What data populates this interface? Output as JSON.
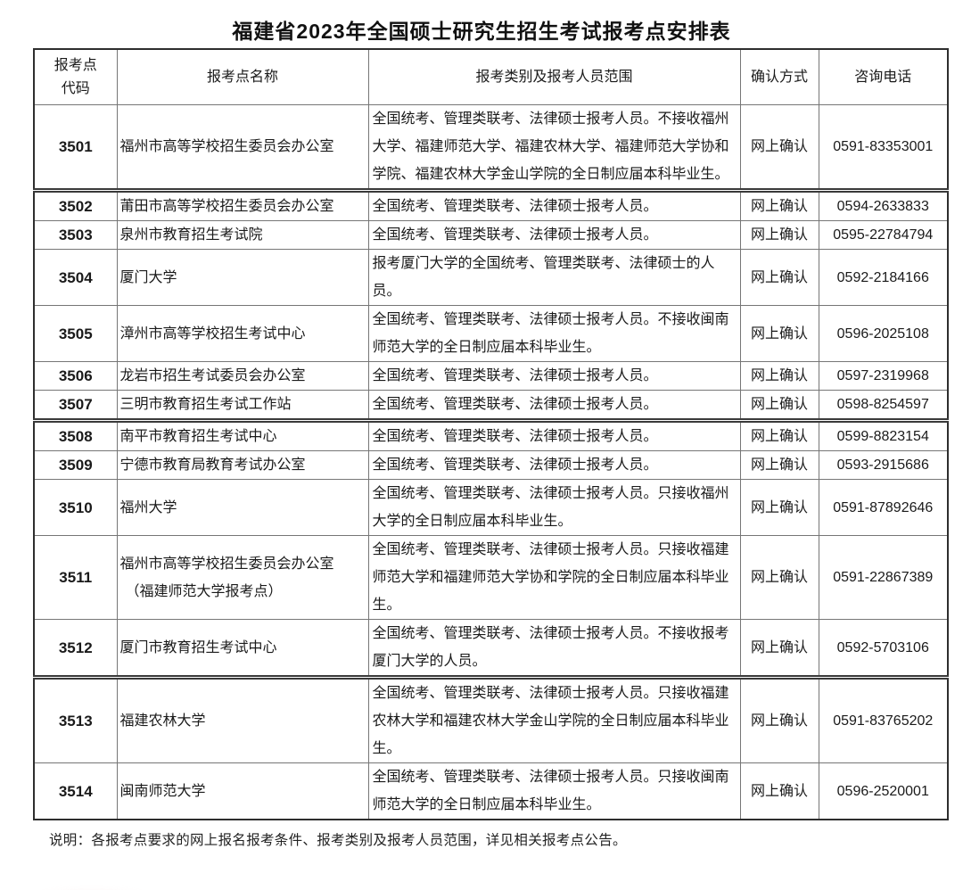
{
  "title": "福建省2023年全国硕士研究生招生考试报考点安排表",
  "table": {
    "headers": {
      "code_line1": "报考点",
      "code_line2": "代码",
      "name": "报考点名称",
      "category": "报考类别及报考人员范围",
      "confirm": "确认方式",
      "phone": "咨询电话"
    },
    "rows": [
      {
        "code": "3501",
        "name": "福州市高等学校招生委员会办公室",
        "category": "全国统考、管理类联考、法律硕士报考人员。不接收福州大学、福建师范大学、福建农林大学、福建师范大学协和学院、福建农林大学金山学院的全日制应届本科毕业生。",
        "confirm": "网上确认",
        "phone": "0591-83353001",
        "section_break": true
      },
      {
        "code": "3502",
        "name": "莆田市高等学校招生委员会办公室",
        "category": "全国统考、管理类联考、法律硕士报考人员。",
        "confirm": "网上确认",
        "phone": "0594-2633833"
      },
      {
        "code": "3503",
        "name": "泉州市教育招生考试院",
        "category": "全国统考、管理类联考、法律硕士报考人员。",
        "confirm": "网上确认",
        "phone": "0595-22784794"
      },
      {
        "code": "3504",
        "name": "厦门大学",
        "category": "报考厦门大学的全国统考、管理类联考、法律硕士的人员。",
        "confirm": "网上确认",
        "phone": "0592-2184166"
      },
      {
        "code": "3505",
        "name": "漳州市高等学校招生考试中心",
        "category": "全国统考、管理类联考、法律硕士报考人员。不接收闽南师范大学的全日制应届本科毕业生。",
        "confirm": "网上确认",
        "phone": "0596-2025108"
      },
      {
        "code": "3506",
        "name": "龙岩市招生考试委员会办公室",
        "category": "全国统考、管理类联考、法律硕士报考人员。",
        "confirm": "网上确认",
        "phone": "0597-2319968"
      },
      {
        "code": "3507",
        "name": "三明市教育招生考试工作站",
        "category": "全国统考、管理类联考、法律硕士报考人员。",
        "confirm": "网上确认",
        "phone": "0598-8254597",
        "section_break": true
      },
      {
        "code": "3508",
        "name": "南平市教育招生考试中心",
        "category": "全国统考、管理类联考、法律硕士报考人员。",
        "confirm": "网上确认",
        "phone": "0599-8823154"
      },
      {
        "code": "3509",
        "name": "宁德市教育局教育考试办公室",
        "category": "全国统考、管理类联考、法律硕士报考人员。",
        "confirm": "网上确认",
        "phone": "0593-2915686"
      },
      {
        "code": "3510",
        "name": "福州大学",
        "category": "全国统考、管理类联考、法律硕士报考人员。只接收福州大学的全日制应届本科毕业生。",
        "confirm": "网上确认",
        "phone": "0591-87892646"
      },
      {
        "code": "3511",
        "name_lines": [
          "福州市高等学校招生委员会办公室",
          "（福建师范大学报考点）"
        ],
        "category": "全国统考、管理类联考、法律硕士报考人员。只接收福建师范大学和福建师范大学协和学院的全日制应届本科毕业生。",
        "confirm": "网上确认",
        "phone": "0591-22867389"
      },
      {
        "code": "3512",
        "name": "厦门市教育招生考试中心",
        "category": "全国统考、管理类联考、法律硕士报考人员。不接收报考厦门大学的人员。",
        "confirm": "网上确认",
        "phone": "0592-5703106",
        "section_break": true
      },
      {
        "code": "3513",
        "name": "福建农林大学",
        "category": "全国统考、管理类联考、法律硕士报考人员。只接收福建农林大学和福建农林大学金山学院的全日制应届本科毕业生。",
        "confirm": "网上确认",
        "phone": "0591-83765202"
      },
      {
        "code": "3514",
        "name": "闽南师范大学",
        "category": "全国统考、管理类联考、法律硕士报考人员。只接收闽南师范大学的全日制应届本科毕业生。",
        "confirm": "网上确认",
        "phone": "0596-2520001"
      }
    ]
  },
  "note": "说明：各报考点要求的网上报名报考条件、报考类别及报考人员范围，详见相关报考点公告。",
  "colors": {
    "text": "#1a1a1a",
    "border_inner": "#767676",
    "border_outer": "#2e2e2e",
    "watermark_pink": "#eb8282"
  }
}
